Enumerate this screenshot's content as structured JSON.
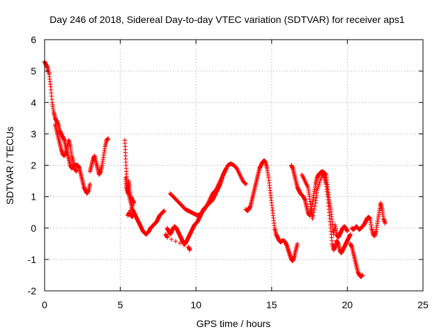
{
  "chart_data": {
    "type": "scatter",
    "title": "Day 246 of 2018, Sidereal Day-to-day VTEC variation (SDTVAR) for receiver aps1",
    "xlabel": "GPS time / hours",
    "ylabel": "SDTVAR / TECUs",
    "xlim": [
      0,
      25
    ],
    "ylim": [
      -2,
      6
    ],
    "xticks": [
      "0",
      "5",
      "10",
      "15",
      "20",
      "25"
    ],
    "yticks": [
      "-2",
      "-1",
      "0",
      "1",
      "2",
      "3",
      "4",
      "5",
      "6"
    ],
    "grid": true,
    "marker": "+",
    "color": "#ff0000",
    "series": [
      {
        "name": "seg1",
        "points": [
          [
            0.0,
            5.3
          ],
          [
            0.1,
            5.2
          ],
          [
            0.2,
            5.1
          ],
          [
            0.3,
            4.9
          ],
          [
            0.4,
            4.5
          ],
          [
            0.5,
            4.0
          ],
          [
            0.6,
            3.7
          ],
          [
            0.7,
            3.5
          ],
          [
            0.8,
            3.4
          ],
          [
            0.9,
            3.3
          ],
          [
            1.0,
            3.1
          ],
          [
            1.1,
            3.0
          ],
          [
            1.2,
            2.9
          ],
          [
            1.3,
            2.8
          ],
          [
            1.4,
            2.6
          ],
          [
            1.5,
            2.4
          ],
          [
            1.6,
            2.2
          ],
          [
            1.7,
            2.0
          ],
          [
            1.8,
            1.9
          ],
          [
            1.9,
            1.95
          ],
          [
            2.0,
            2.0
          ],
          [
            2.1,
            2.0
          ],
          [
            2.2,
            2.0
          ],
          [
            2.3,
            1.9
          ],
          [
            2.4,
            1.7
          ],
          [
            2.5,
            1.5
          ],
          [
            2.6,
            1.3
          ],
          [
            2.7,
            1.2
          ],
          [
            2.8,
            1.1
          ],
          [
            2.9,
            1.2
          ],
          [
            3.0,
            1.4
          ]
        ]
      },
      {
        "name": "seg1b",
        "points": [
          [
            0.7,
            3.3
          ],
          [
            0.8,
            3.1
          ],
          [
            0.9,
            2.9
          ],
          [
            1.0,
            2.7
          ],
          [
            1.1,
            2.5
          ],
          [
            1.2,
            2.35
          ],
          [
            1.3,
            2.3
          ],
          [
            1.4,
            2.4
          ],
          [
            1.5,
            2.6
          ],
          [
            1.6,
            2.8
          ],
          [
            1.7,
            2.6
          ],
          [
            1.8,
            2.3
          ],
          [
            1.9,
            2.1
          ],
          [
            2.0,
            1.9
          ],
          [
            2.1,
            1.8
          ]
        ]
      },
      {
        "name": "seg1c",
        "points": [
          [
            3.0,
            1.8
          ],
          [
            3.1,
            2.0
          ],
          [
            3.2,
            2.2
          ],
          [
            3.3,
            2.3
          ],
          [
            3.4,
            2.1
          ],
          [
            3.5,
            1.9
          ],
          [
            3.6,
            1.7
          ],
          [
            3.7,
            1.8
          ],
          [
            3.8,
            2.0
          ],
          [
            3.9,
            2.3
          ],
          [
            4.0,
            2.6
          ],
          [
            4.1,
            2.8
          ],
          [
            4.2,
            2.85
          ]
        ]
      },
      {
        "name": "seg2",
        "points": [
          [
            5.3,
            2.8
          ],
          [
            5.35,
            2.3
          ],
          [
            5.4,
            1.8
          ],
          [
            5.45,
            1.4
          ],
          [
            5.5,
            1.2
          ],
          [
            5.6,
            1.0
          ],
          [
            5.7,
            0.8
          ],
          [
            5.8,
            0.6
          ],
          [
            5.9,
            0.5
          ],
          [
            6.0,
            0.4
          ],
          [
            6.1,
            0.3
          ],
          [
            6.2,
            0.2
          ],
          [
            6.3,
            0.1
          ],
          [
            6.4,
            0.0
          ],
          [
            6.5,
            -0.1
          ],
          [
            6.6,
            -0.15
          ],
          [
            6.7,
            -0.2
          ],
          [
            6.8,
            -0.15
          ],
          [
            6.9,
            -0.1
          ],
          [
            7.0,
            0.0
          ],
          [
            7.1,
            0.05
          ],
          [
            7.2,
            0.1
          ],
          [
            7.3,
            0.15
          ],
          [
            7.4,
            0.2
          ],
          [
            7.5,
            0.3
          ],
          [
            7.6,
            0.4
          ],
          [
            7.7,
            0.45
          ],
          [
            7.8,
            0.5
          ],
          [
            7.9,
            0.55
          ]
        ]
      },
      {
        "name": "seg2b",
        "points": [
          [
            5.35,
            1.6
          ],
          [
            5.4,
            1.3
          ],
          [
            5.5,
            1.1
          ],
          [
            5.55,
            1.5
          ],
          [
            5.6,
            1.3
          ],
          [
            5.7,
            1.0
          ],
          [
            5.8,
            0.9
          ],
          [
            5.9,
            0.8
          ],
          [
            5.5,
            0.4
          ],
          [
            5.6,
            0.5
          ],
          [
            5.7,
            0.4
          ],
          [
            5.8,
            0.35
          ]
        ]
      },
      {
        "name": "seg3",
        "points": [
          [
            8.1,
            0.0
          ],
          [
            8.2,
            -0.1
          ],
          [
            8.3,
            -0.2
          ],
          [
            8.4,
            -0.1
          ],
          [
            8.5,
            0.0
          ],
          [
            8.6,
            0.05
          ],
          [
            8.7,
            0.0
          ],
          [
            8.8,
            -0.1
          ],
          [
            8.9,
            -0.2
          ],
          [
            9.0,
            -0.3
          ],
          [
            9.1,
            -0.4
          ],
          [
            9.2,
            -0.5
          ],
          [
            9.3,
            -0.5
          ],
          [
            9.4,
            -0.4
          ],
          [
            9.5,
            -0.3
          ],
          [
            9.6,
            -0.2
          ],
          [
            9.7,
            -0.1
          ],
          [
            9.8,
            0.0
          ],
          [
            9.9,
            0.1
          ],
          [
            10.0,
            0.15
          ],
          [
            10.1,
            0.2
          ],
          [
            10.2,
            0.3
          ],
          [
            10.3,
            0.4
          ],
          [
            10.4,
            0.5
          ],
          [
            10.5,
            0.6
          ],
          [
            10.6,
            0.65
          ],
          [
            10.7,
            0.7
          ],
          [
            10.8,
            0.75
          ],
          [
            10.9,
            0.8
          ],
          [
            11.0,
            0.85
          ],
          [
            11.1,
            0.9
          ],
          [
            11.2,
            1.0
          ],
          [
            11.3,
            1.1
          ],
          [
            11.4,
            1.2
          ],
          [
            11.5,
            1.3
          ],
          [
            11.6,
            1.4
          ],
          [
            11.7,
            1.55
          ],
          [
            11.8,
            1.7
          ],
          [
            11.9,
            1.8
          ],
          [
            12.0,
            1.9
          ]
        ]
      },
      {
        "name": "seg3b",
        "points": [
          [
            8.3,
            1.1
          ],
          [
            8.5,
            1.0
          ],
          [
            8.7,
            0.9
          ],
          [
            8.9,
            0.8
          ],
          [
            9.1,
            0.7
          ],
          [
            9.3,
            0.6
          ],
          [
            9.5,
            0.55
          ],
          [
            9.7,
            0.5
          ],
          [
            9.9,
            0.45
          ],
          [
            10.1,
            0.4
          ],
          [
            10.3,
            0.45
          ],
          [
            10.5,
            0.55
          ],
          [
            10.7,
            0.7
          ],
          [
            10.9,
            0.9
          ],
          [
            11.1,
            1.1
          ],
          [
            11.3,
            1.2
          ],
          [
            11.5,
            1.4
          ],
          [
            11.7,
            1.6
          ],
          [
            11.9,
            1.8
          ],
          [
            12.1,
            2.0
          ],
          [
            12.3,
            2.05
          ],
          [
            12.5,
            2.0
          ],
          [
            12.7,
            1.9
          ],
          [
            12.9,
            1.7
          ],
          [
            13.1,
            1.5
          ],
          [
            13.3,
            1.4
          ]
        ]
      },
      {
        "name": "seg3c",
        "points": [
          [
            8.0,
            -0.2
          ],
          [
            8.1,
            -0.3
          ],
          [
            9.5,
            -0.6
          ],
          [
            9.6,
            -0.7
          ]
        ]
      },
      {
        "name": "seg4",
        "points": [
          [
            13.3,
            0.6
          ],
          [
            13.4,
            0.55
          ],
          [
            13.5,
            0.6
          ],
          [
            13.6,
            0.7
          ],
          [
            13.7,
            0.9
          ],
          [
            13.8,
            1.1
          ],
          [
            13.9,
            1.3
          ],
          [
            14.0,
            1.5
          ],
          [
            14.1,
            1.7
          ],
          [
            14.2,
            1.9
          ],
          [
            14.3,
            2.0
          ],
          [
            14.4,
            2.1
          ],
          [
            14.5,
            2.15
          ],
          [
            14.6,
            2.1
          ],
          [
            14.7,
            1.9
          ],
          [
            14.8,
            1.6
          ],
          [
            14.9,
            1.2
          ],
          [
            15.0,
            0.8
          ],
          [
            15.1,
            0.4
          ],
          [
            15.2,
            0.0
          ],
          [
            15.3,
            -0.2
          ],
          [
            15.4,
            -0.3
          ],
          [
            15.5,
            -0.4
          ],
          [
            15.6,
            -0.45
          ],
          [
            15.7,
            -0.4
          ],
          [
            15.8,
            -0.4
          ],
          [
            15.9,
            -0.45
          ],
          [
            16.0,
            -0.55
          ],
          [
            16.1,
            -0.7
          ],
          [
            16.2,
            -0.85
          ],
          [
            16.3,
            -1.0
          ],
          [
            16.4,
            -1.05
          ],
          [
            16.5,
            -0.9
          ],
          [
            16.6,
            -0.7
          ],
          [
            16.7,
            -0.5
          ]
        ]
      },
      {
        "name": "seg5",
        "points": [
          [
            16.3,
            2.0
          ],
          [
            16.4,
            1.9
          ],
          [
            16.5,
            1.7
          ],
          [
            16.6,
            1.5
          ],
          [
            16.7,
            1.3
          ],
          [
            16.8,
            1.2
          ],
          [
            16.9,
            1.1
          ],
          [
            17.0,
            1.05
          ],
          [
            17.1,
            1.0
          ],
          [
            17.2,
            0.9
          ],
          [
            17.3,
            0.7
          ],
          [
            17.4,
            0.5
          ],
          [
            17.5,
            0.4
          ],
          [
            17.6,
            0.5
          ],
          [
            17.7,
            0.8
          ],
          [
            17.8,
            1.1
          ],
          [
            17.9,
            1.4
          ],
          [
            18.0,
            1.6
          ],
          [
            18.1,
            1.7
          ],
          [
            18.2,
            1.75
          ],
          [
            18.3,
            1.8
          ],
          [
            18.4,
            1.75
          ],
          [
            18.5,
            1.6
          ],
          [
            18.6,
            1.4
          ],
          [
            18.7,
            1.0
          ],
          [
            18.8,
            0.5
          ],
          [
            18.9,
            0.0
          ],
          [
            19.0,
            -0.5
          ],
          [
            19.1,
            -0.7
          ],
          [
            19.2,
            -0.6
          ],
          [
            19.3,
            -0.4
          ],
          [
            19.4,
            -0.5
          ],
          [
            19.5,
            -0.7
          ],
          [
            19.6,
            -0.8
          ],
          [
            19.7,
            -0.7
          ],
          [
            19.8,
            -0.6
          ],
          [
            19.9,
            -0.5
          ],
          [
            20.0,
            -0.4
          ],
          [
            20.1,
            -0.3
          ],
          [
            20.2,
            -0.2
          ]
        ]
      },
      {
        "name": "seg5b",
        "points": [
          [
            17.0,
            1.7
          ],
          [
            17.2,
            1.5
          ],
          [
            17.4,
            1.3
          ],
          [
            17.5,
            1.0
          ],
          [
            17.6,
            0.6
          ],
          [
            17.7,
            0.3
          ],
          [
            17.9,
            0.8
          ],
          [
            18.0,
            1.2
          ],
          [
            18.2,
            1.5
          ],
          [
            18.4,
            1.8
          ],
          [
            18.6,
            1.7
          ],
          [
            18.7,
            1.3
          ],
          [
            18.8,
            0.9
          ],
          [
            18.9,
            0.6
          ],
          [
            19.0,
            0.2
          ],
          [
            19.1,
            -0.2
          ],
          [
            19.2,
            0.1
          ],
          [
            19.3,
            -0.2
          ],
          [
            19.4,
            -0.3
          ],
          [
            19.5,
            -0.2
          ],
          [
            19.6,
            -0.1
          ],
          [
            19.7,
            0.0
          ],
          [
            19.8,
            0.05
          ],
          [
            19.9,
            0.0
          ],
          [
            20.0,
            -0.1
          ]
        ]
      },
      {
        "name": "seg6",
        "points": [
          [
            20.2,
            -0.5
          ],
          [
            20.3,
            -0.6
          ],
          [
            20.4,
            -0.8
          ],
          [
            20.5,
            -1.0
          ],
          [
            20.6,
            -1.2
          ],
          [
            20.7,
            -1.4
          ],
          [
            20.8,
            -1.5
          ],
          [
            20.9,
            -1.55
          ],
          [
            21.0,
            -1.5
          ]
        ]
      },
      {
        "name": "seg6b",
        "points": [
          [
            20.3,
            0.0
          ],
          [
            20.4,
            -0.05
          ],
          [
            20.5,
            0.0
          ],
          [
            20.6,
            0.05
          ],
          [
            20.7,
            0.0
          ],
          [
            20.8,
            -0.05
          ],
          [
            20.9,
            0.0
          ],
          [
            21.0,
            0.05
          ],
          [
            21.1,
            0.1
          ],
          [
            21.2,
            0.2
          ],
          [
            21.3,
            0.3
          ],
          [
            21.4,
            0.35
          ],
          [
            21.5,
            0.3
          ],
          [
            21.6,
            0.0
          ],
          [
            21.7,
            -0.2
          ],
          [
            21.8,
            -0.25
          ],
          [
            21.9,
            -0.1
          ],
          [
            22.0,
            0.2
          ],
          [
            22.1,
            0.5
          ],
          [
            22.2,
            0.8
          ],
          [
            22.3,
            0.6
          ],
          [
            22.4,
            0.3
          ],
          [
            22.5,
            0.15
          ]
        ]
      }
    ]
  }
}
